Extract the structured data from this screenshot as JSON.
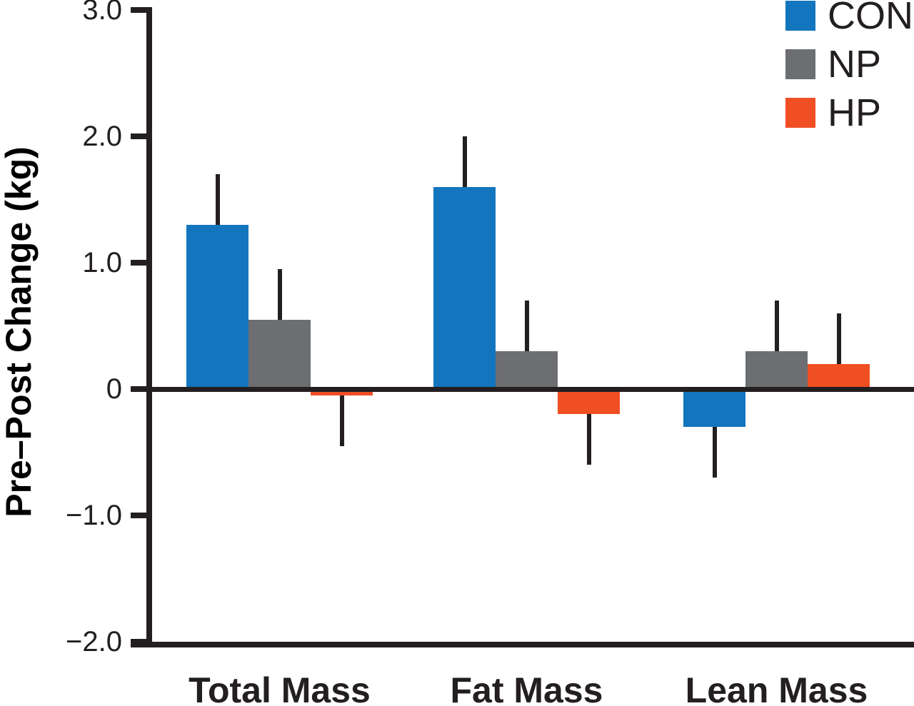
{
  "chart_data": {
    "type": "bar",
    "title": "",
    "ylabel": "Pre–Post Change (kg)",
    "xlabel": "",
    "categories": [
      "Total Mass",
      "Fat Mass",
      "Lean Mass"
    ],
    "series": [
      {
        "name": "CON",
        "color": "#1375BD",
        "values": [
          1.3,
          1.6,
          -0.3
        ],
        "errors": [
          0.4,
          0.4,
          0.4
        ]
      },
      {
        "name": "NP",
        "color": "#6D6E71",
        "values": [
          0.55,
          0.3,
          0.3
        ],
        "errors": [
          0.4,
          0.4,
          0.4
        ]
      },
      {
        "name": "HP",
        "color": "#F04E23",
        "values": [
          -0.05,
          -0.2,
          0.2
        ],
        "errors": [
          0.4,
          0.4,
          0.4
        ]
      }
    ],
    "ylim": [
      -2.0,
      3.0
    ],
    "yticks": [
      {
        "value": 3.0,
        "label": "3.0"
      },
      {
        "value": 2.0,
        "label": "2.0"
      },
      {
        "value": 1.0,
        "label": "1.0"
      },
      {
        "value": 0.0,
        "label": "0"
      },
      {
        "value": -1.0,
        "label": "−1.0"
      },
      {
        "value": -2.0,
        "label": "−2.0"
      }
    ],
    "error_bars": "one-sided, extending away from zero in direction of bar value",
    "legend_position": "top-right",
    "grid": false,
    "axis_color": "#231F20"
  }
}
